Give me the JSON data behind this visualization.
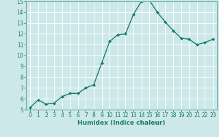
{
  "x": [
    0,
    1,
    2,
    3,
    4,
    5,
    6,
    7,
    8,
    9,
    10,
    11,
    12,
    13,
    14,
    15,
    16,
    17,
    18,
    19,
    20,
    21,
    22,
    23
  ],
  "y": [
    5.2,
    5.9,
    5.5,
    5.6,
    6.2,
    6.5,
    6.5,
    7.0,
    7.3,
    9.3,
    11.3,
    11.9,
    12.0,
    13.8,
    15.0,
    15.1,
    14.0,
    13.1,
    12.3,
    11.6,
    11.5,
    11.0,
    11.2,
    11.5
  ],
  "xlabel": "Humidex (Indice chaleur)",
  "ylim": [
    5,
    15
  ],
  "xlim": [
    -0.5,
    23.5
  ],
  "yticks": [
    5,
    6,
    7,
    8,
    9,
    10,
    11,
    12,
    13,
    14,
    15
  ],
  "xticks": [
    0,
    1,
    2,
    3,
    4,
    5,
    6,
    7,
    8,
    9,
    10,
    11,
    12,
    13,
    14,
    15,
    16,
    17,
    18,
    19,
    20,
    21,
    22,
    23
  ],
  "line_color": "#1a7a6e",
  "marker": "D",
  "marker_size": 2.0,
  "bg_color": "#cce8e8",
  "grid_color": "#ffffff",
  "spine_color": "#6aacac",
  "tick_color": "#1a7a6e",
  "label_fontsize": 6.5,
  "tick_fontsize": 5.5,
  "linewidth": 1.0
}
